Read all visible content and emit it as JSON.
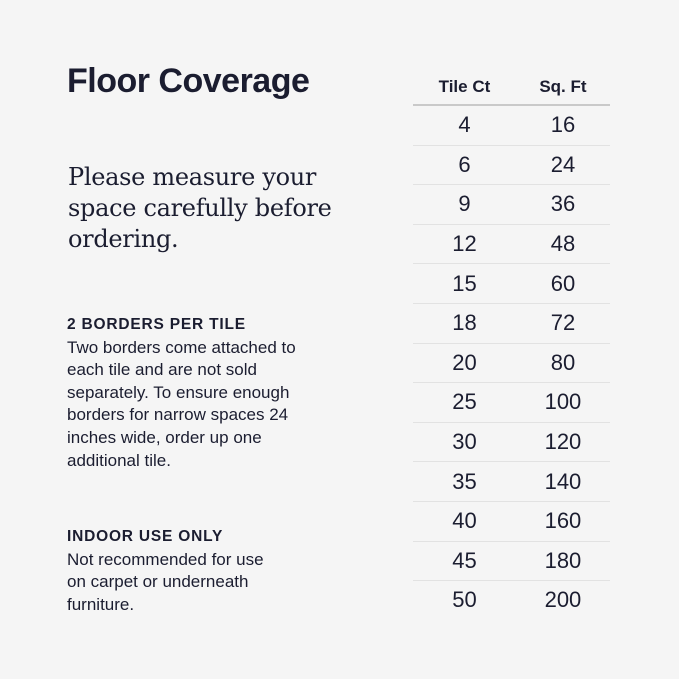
{
  "title": "Floor Coverage",
  "tagline": "Please measure your space carefully before ordering.",
  "sections": [
    {
      "heading": "2 BORDERS PER TILE",
      "body": "Two borders come attached to each tile and are not sold separately. To ensure enough borders for narrow spaces 24 inches wide, order up one additional tile."
    },
    {
      "heading": "INDOOR USE ONLY",
      "body": "Not recommended for use on carpet or underneath furniture."
    }
  ],
  "table": {
    "headers": [
      "Tile Ct",
      "Sq. Ft"
    ],
    "rows": [
      [
        "4",
        "16"
      ],
      [
        "6",
        "24"
      ],
      [
        "9",
        "36"
      ],
      [
        "12",
        "48"
      ],
      [
        "15",
        "60"
      ],
      [
        "18",
        "72"
      ],
      [
        "20",
        "80"
      ],
      [
        "25",
        "100"
      ],
      [
        "30",
        "120"
      ],
      [
        "35",
        "140"
      ],
      [
        "40",
        "160"
      ],
      [
        "45",
        "180"
      ],
      [
        "50",
        "200"
      ]
    ]
  },
  "colors": {
    "text": "#1b1d30",
    "background": "#f5f5f5"
  }
}
